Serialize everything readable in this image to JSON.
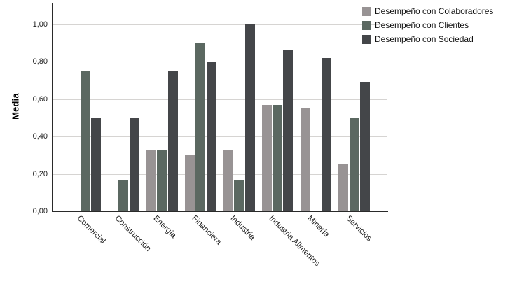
{
  "chart_data": {
    "type": "bar",
    "title": "",
    "xlabel": "",
    "ylabel": "Media",
    "categories": [
      "Comercial",
      "Construcción",
      "Energía",
      "Financiera",
      "Industria",
      "Industria Alimentos",
      "Minería",
      "Servicios"
    ],
    "series": [
      {
        "name": "Desempeño con Colaboradores",
        "color": "#989394",
        "values": [
          null,
          null,
          0.33,
          0.3,
          0.33,
          0.57,
          0.55,
          0.25
        ]
      },
      {
        "name": "Desempeño con Clientes",
        "color": "#5b6861",
        "values": [
          0.75,
          0.17,
          0.33,
          0.9,
          0.17,
          0.57,
          null,
          0.5
        ]
      },
      {
        "name": "Desempeño con Sociedad",
        "color": "#444649",
        "values": [
          0.5,
          0.5,
          0.75,
          0.8,
          1.0,
          0.86,
          0.82,
          0.69
        ]
      }
    ],
    "yticks": [
      {
        "value": 0.0,
        "label": "0,00"
      },
      {
        "value": 0.2,
        "label": "0,20"
      },
      {
        "value": 0.4,
        "label": "0,40"
      },
      {
        "value": 0.6,
        "label": "0,60"
      },
      {
        "value": 0.8,
        "label": "0,80"
      },
      {
        "value": 1.0,
        "label": "1,00"
      }
    ],
    "ylim": [
      0,
      1.11
    ],
    "grid": true,
    "legend_position": "top-right",
    "decimal_separator": ","
  },
  "colors": {
    "background": "#ffffff",
    "gridline": "#d6d4d2",
    "axis": "#2a2a2a",
    "text": "#1f1f1f"
  }
}
